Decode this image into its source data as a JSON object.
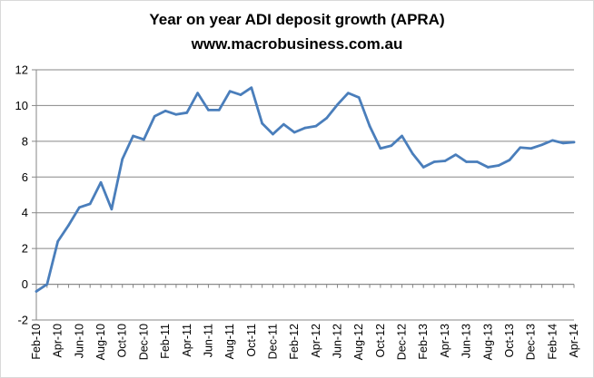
{
  "chart_data": {
    "type": "line",
    "title": "Year on year ADI deposit growth (APRA)",
    "subtitle": "www.macrobusiness.com.au",
    "xlabel": "",
    "ylabel": "",
    "ylim": [
      -2,
      12
    ],
    "yticks": [
      -2,
      0,
      2,
      4,
      6,
      8,
      10,
      12
    ],
    "grid": true,
    "legend": "none",
    "tick_labels": [
      "Feb-10",
      "Apr-10",
      "Jun-10",
      "Aug-10",
      "Oct-10",
      "Dec-10",
      "Feb-11",
      "Apr-11",
      "Jun-11",
      "Aug-11",
      "Oct-11",
      "Dec-11",
      "Feb-12",
      "Apr-12",
      "Jun-12",
      "Aug-12",
      "Oct-12",
      "Dec-12",
      "Feb-13",
      "Apr-13",
      "Jun-13",
      "Aug-13",
      "Oct-13",
      "Dec-13",
      "Feb-14",
      "Apr-14"
    ],
    "x": [
      "Feb-10",
      "Mar-10",
      "Apr-10",
      "May-10",
      "Jun-10",
      "Jul-10",
      "Aug-10",
      "Sep-10",
      "Oct-10",
      "Nov-10",
      "Dec-10",
      "Jan-11",
      "Feb-11",
      "Mar-11",
      "Apr-11",
      "May-11",
      "Jun-11",
      "Jul-11",
      "Aug-11",
      "Sep-11",
      "Oct-11",
      "Nov-11",
      "Dec-11",
      "Jan-12",
      "Feb-12",
      "Mar-12",
      "Apr-12",
      "May-12",
      "Jun-12",
      "Jul-12",
      "Aug-12",
      "Sep-12",
      "Oct-12",
      "Nov-12",
      "Dec-12",
      "Jan-13",
      "Feb-13",
      "Mar-13",
      "Apr-13",
      "May-13",
      "Jun-13",
      "Jul-13",
      "Aug-13",
      "Sep-13",
      "Oct-13",
      "Nov-13",
      "Dec-13",
      "Jan-14",
      "Feb-14",
      "Mar-14",
      "Apr-14"
    ],
    "series": [
      {
        "name": "Year on year ADI deposit growth",
        "color": "#4a7ebb",
        "values": [
          -0.4,
          0.0,
          2.4,
          3.3,
          4.3,
          4.5,
          5.7,
          4.2,
          7.0,
          8.3,
          8.1,
          9.4,
          9.7,
          9.5,
          9.6,
          10.7,
          9.75,
          9.75,
          10.8,
          10.6,
          11.0,
          9.0,
          8.4,
          8.95,
          8.5,
          8.75,
          8.85,
          9.3,
          10.05,
          10.7,
          10.45,
          8.85,
          7.6,
          7.75,
          8.3,
          7.3,
          6.55,
          6.85,
          6.9,
          7.25,
          6.85,
          6.85,
          6.55,
          6.65,
          6.95,
          7.65,
          7.6,
          7.8,
          8.05,
          7.9,
          7.95
        ]
      }
    ]
  }
}
